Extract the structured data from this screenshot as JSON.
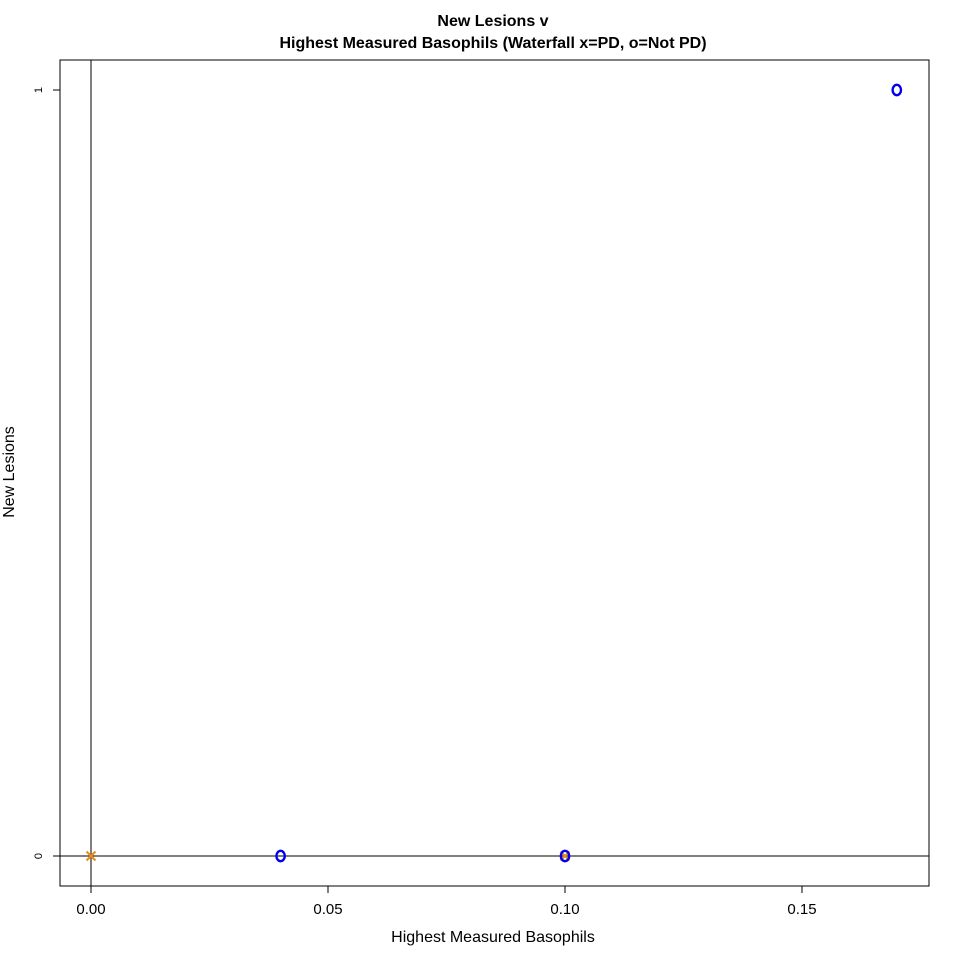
{
  "chart_data": {
    "type": "scatter",
    "title_line1": "New Lesions v",
    "title_line2": "Highest Measured Basophils (Waterfall x=PD, o=Not PD)",
    "xlabel": "Highest Measured Basophils",
    "ylabel": "New Lesions",
    "xlim": [
      0.0,
      0.17
    ],
    "ylim": [
      0,
      1
    ],
    "x_ticks": [
      "0.00",
      "0.05",
      "0.10",
      "0.15"
    ],
    "x_tick_values": [
      0.0,
      0.05,
      0.1,
      0.15
    ],
    "y_ticks": [
      "0",
      "1"
    ],
    "y_tick_values": [
      0,
      1
    ],
    "reference_lines": {
      "x": 0,
      "y": 0
    },
    "grid": false,
    "series": [
      {
        "name": "PD",
        "marker": "x",
        "color": "#e8901e",
        "points": [
          {
            "x": 0.0,
            "y": 0
          },
          {
            "x": 0.1,
            "y": 0
          }
        ]
      },
      {
        "name": "Not PD",
        "marker": "o",
        "color": "#0000ee",
        "points": [
          {
            "x": 0.04,
            "y": 0
          },
          {
            "x": 0.1,
            "y": 0
          },
          {
            "x": 0.17,
            "y": 1
          }
        ]
      }
    ]
  }
}
